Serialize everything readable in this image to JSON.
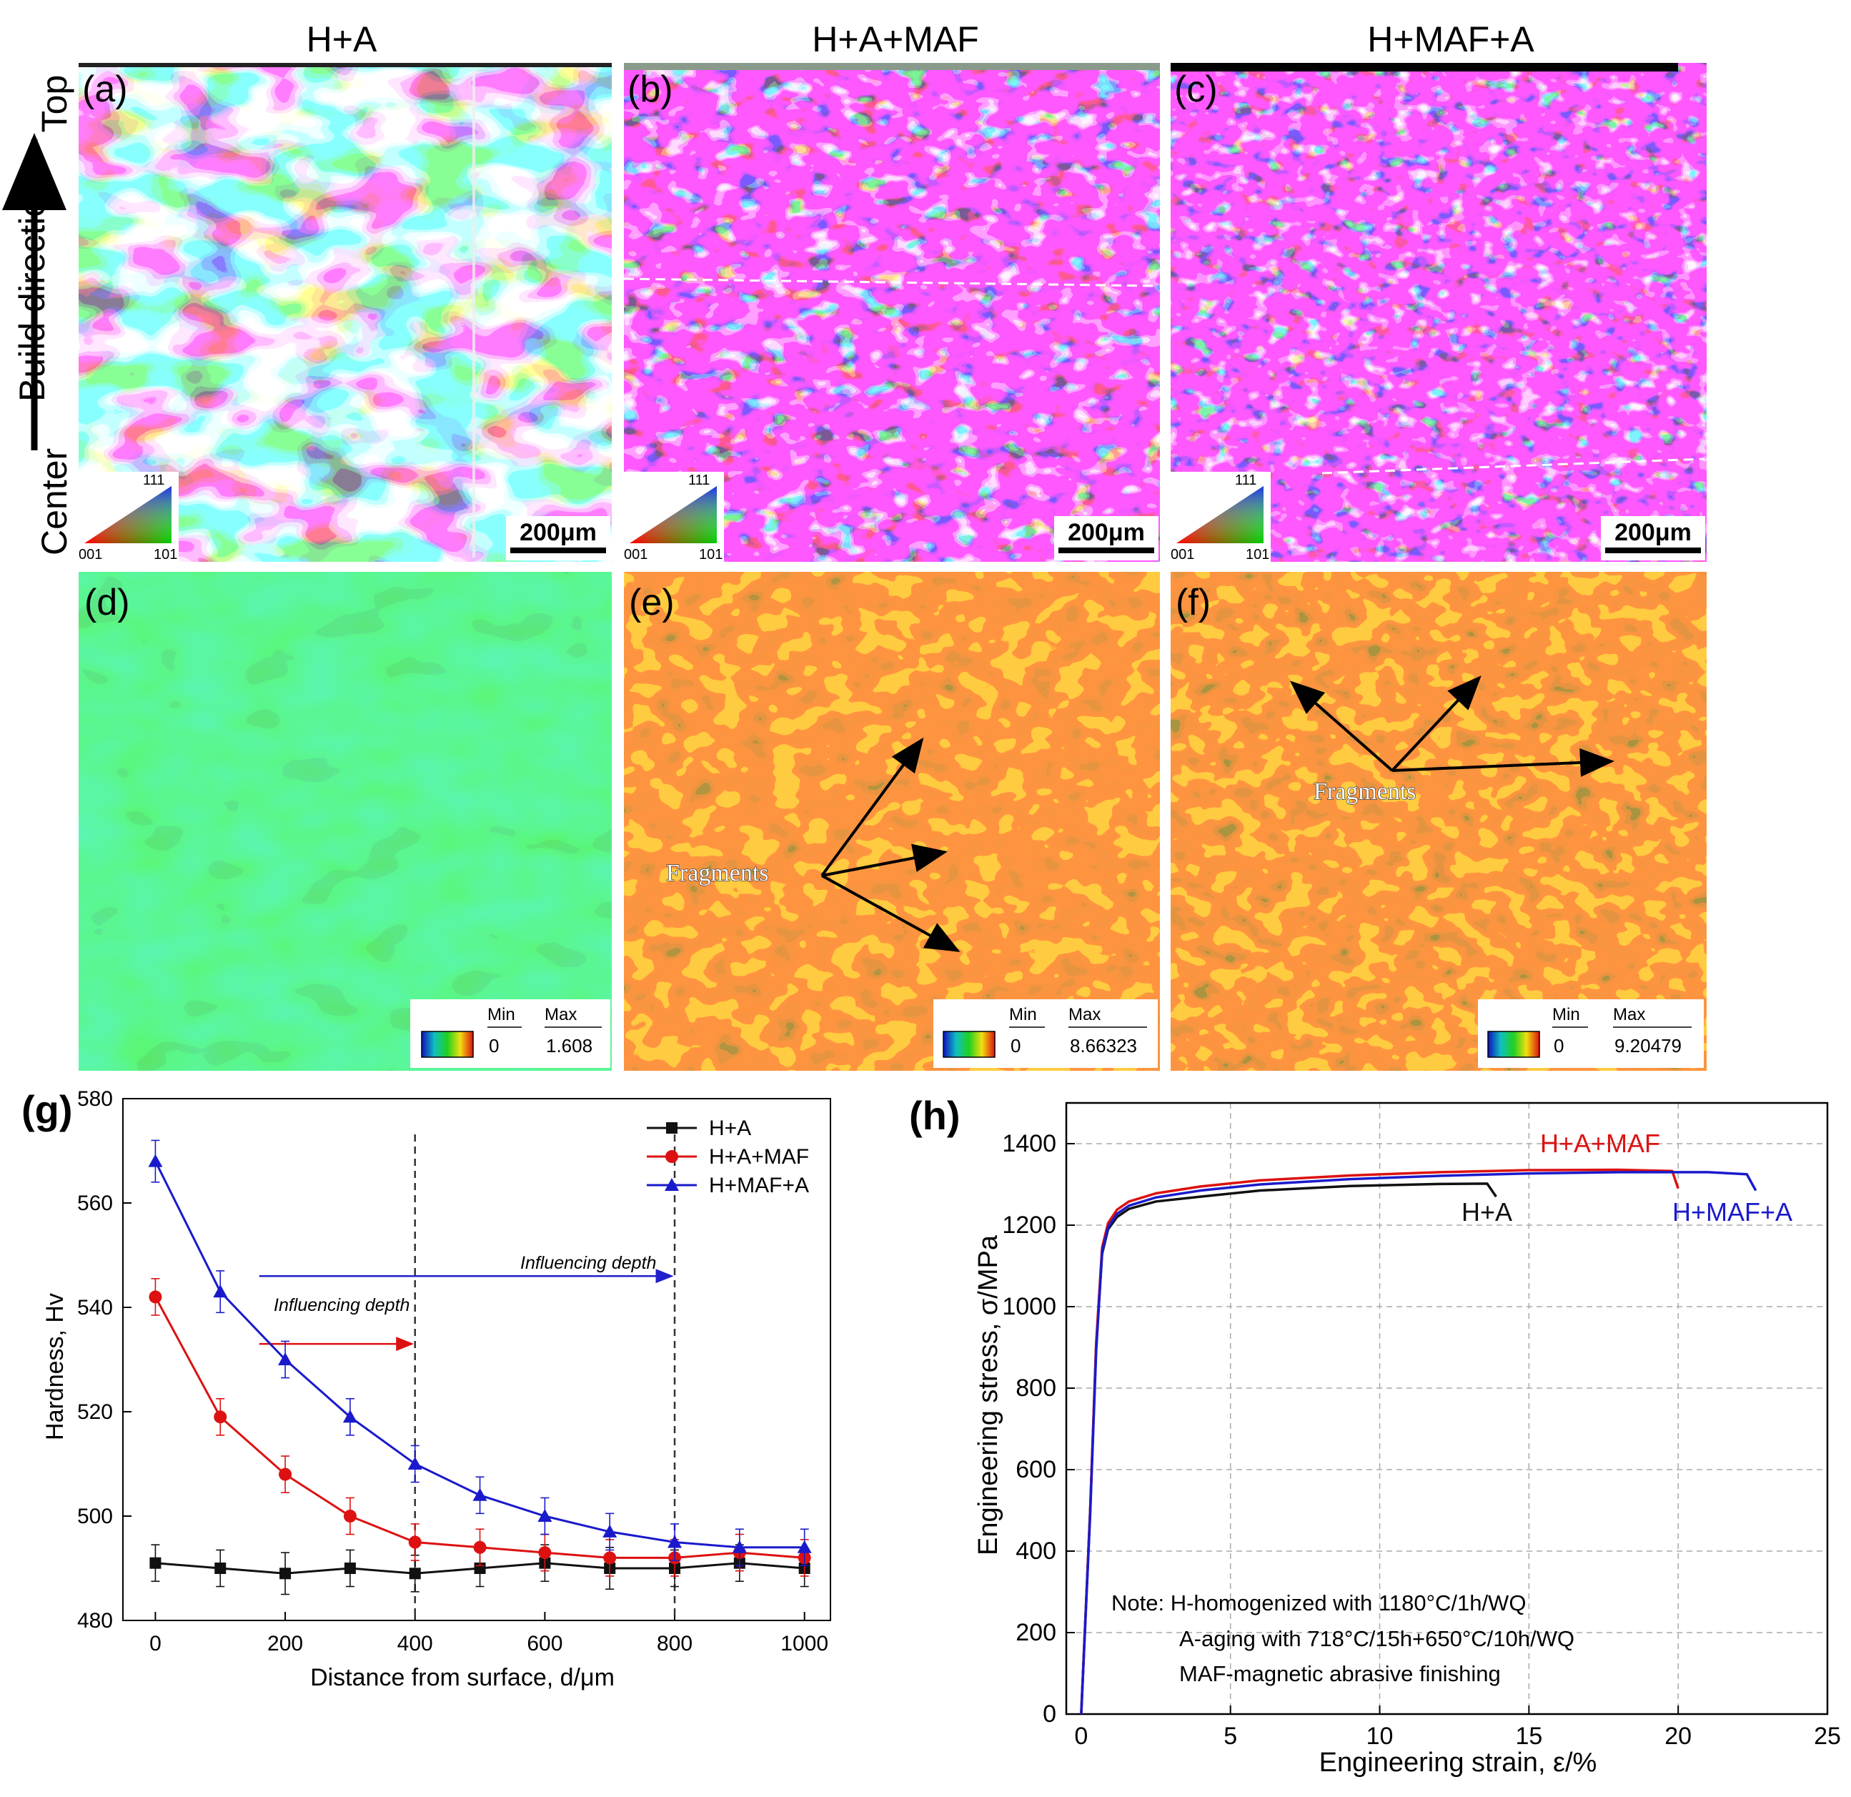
{
  "column_titles": [
    "H+A",
    "H+A+MAF",
    "H+MAF+A"
  ],
  "side_label": {
    "top": "Top",
    "direction": "Build direction",
    "bottom": "Center"
  },
  "ebsd_panels": [
    {
      "label": "(a)",
      "scale_bar": "200μm",
      "ipf": {
        "corner_top": "111",
        "corner_left": "001",
        "corner_right": "101"
      }
    },
    {
      "label": "(b)",
      "scale_bar": "200μm",
      "ipf": {
        "corner_top": "111",
        "corner_left": "001",
        "corner_right": "101"
      }
    },
    {
      "label": "(c)",
      "scale_bar": "200μm",
      "ipf": {
        "corner_top": "111",
        "corner_left": "001",
        "corner_right": "101"
      }
    }
  ],
  "kam_panels": [
    {
      "label": "(d)",
      "legend": {
        "min_label": "Min",
        "max_label": "Max",
        "min": "0",
        "max": "1.608"
      }
    },
    {
      "label": "(e)",
      "legend": {
        "min_label": "Min",
        "max_label": "Max",
        "min": "0",
        "max": "8.66323"
      },
      "annotation": "Fragments"
    },
    {
      "label": "(f)",
      "legend": {
        "min_label": "Min",
        "max_label": "Max",
        "min": "0",
        "max": "9.20479"
      },
      "annotation": "Fragments"
    }
  ],
  "colors": {
    "ha": "#111111",
    "hamaf": "#dd1111",
    "hmafa": "#1a1acc"
  },
  "chart_data": [
    {
      "label": "(g)",
      "type": "line",
      "xlabel": "Distance from surface, d/μm",
      "ylabel": "Hardness, Hv",
      "xlim": [
        -50,
        1040
      ],
      "ylim": [
        480,
        580
      ],
      "xticks": [
        0,
        200,
        400,
        600,
        800,
        1000
      ],
      "yticks": [
        480,
        500,
        520,
        540,
        560,
        580
      ],
      "legend_position": "top-right",
      "x": [
        0,
        100,
        200,
        300,
        400,
        500,
        600,
        700,
        800,
        900,
        1000
      ],
      "series": [
        {
          "name": "H+A",
          "marker": "square",
          "values": [
            491,
            490,
            489,
            490,
            489,
            490,
            491,
            490,
            490,
            491,
            490
          ],
          "errors": [
            3.5,
            3.5,
            4,
            3.5,
            3.5,
            3.5,
            3.5,
            4,
            3.5,
            3.5,
            3.5
          ]
        },
        {
          "name": "H+A+MAF",
          "marker": "circle",
          "values": [
            542,
            519,
            508,
            500,
            495,
            494,
            493,
            492,
            492,
            493,
            492
          ],
          "errors": [
            3.5,
            3.5,
            3.5,
            3.5,
            3.5,
            3.5,
            3.5,
            3.5,
            3.5,
            3.5,
            3.5
          ]
        },
        {
          "name": "H+MAF+A",
          "marker": "triangle",
          "values": [
            568,
            543,
            530,
            519,
            510,
            504,
            500,
            497,
            495,
            494,
            494
          ],
          "errors": [
            4,
            4,
            3.5,
            3.5,
            3.5,
            3.5,
            3.5,
            3.5,
            3.5,
            3.5,
            3.5
          ]
        }
      ],
      "annotations": [
        {
          "text": "Influencing depth",
          "x_from": 160,
          "x_to": 400,
          "at": 400
        },
        {
          "text": "Influencing depth",
          "x_from": 160,
          "x_to": 800,
          "at": 800
        }
      ]
    },
    {
      "label": "(h)",
      "type": "line",
      "xlabel": "Engineering strain, ε/%",
      "ylabel": "Engineering stress, σ/MPa",
      "xlim": [
        -0.5,
        25
      ],
      "ylim": [
        0,
        1500
      ],
      "xticks": [
        0,
        5,
        10,
        15,
        20,
        25
      ],
      "yticks": [
        0,
        200,
        400,
        600,
        800,
        1000,
        1200,
        1400
      ],
      "grid": true,
      "series": [
        {
          "name": "H+A",
          "label_text": "H+A",
          "x": [
            0,
            0.3,
            0.5,
            0.7,
            0.9,
            1.2,
            1.6,
            2.5,
            4,
            6,
            9,
            12,
            13.6,
            13.9
          ],
          "values": [
            0,
            500,
            900,
            1130,
            1190,
            1220,
            1240,
            1258,
            1270,
            1285,
            1296,
            1301,
            1302,
            1270
          ]
        },
        {
          "name": "H+A+MAF",
          "label_text": "H+A+MAF",
          "x": [
            0,
            0.3,
            0.5,
            0.7,
            0.9,
            1.2,
            1.6,
            2.5,
            4,
            6,
            9,
            12,
            15,
            18,
            19.8,
            20.0
          ],
          "values": [
            0,
            500,
            910,
            1145,
            1205,
            1238,
            1258,
            1278,
            1295,
            1310,
            1322,
            1330,
            1335,
            1336,
            1333,
            1290
          ]
        },
        {
          "name": "H+MAF+A",
          "label_text": "H+MAF+A",
          "x": [
            0,
            0.3,
            0.5,
            0.7,
            0.9,
            1.2,
            1.6,
            2.5,
            4,
            6,
            9,
            12,
            15,
            18,
            21,
            22.3,
            22.6
          ],
          "values": [
            0,
            490,
            890,
            1135,
            1195,
            1228,
            1248,
            1268,
            1285,
            1300,
            1313,
            1321,
            1327,
            1330,
            1330,
            1325,
            1285
          ]
        }
      ],
      "note_lines": [
        "Note: H-homogenized with 1180°C/1h/WQ",
        "A-aging with 718°C/15h+650°C/10h/WQ",
        "MAF-magnetic abrasive finishing"
      ]
    }
  ]
}
